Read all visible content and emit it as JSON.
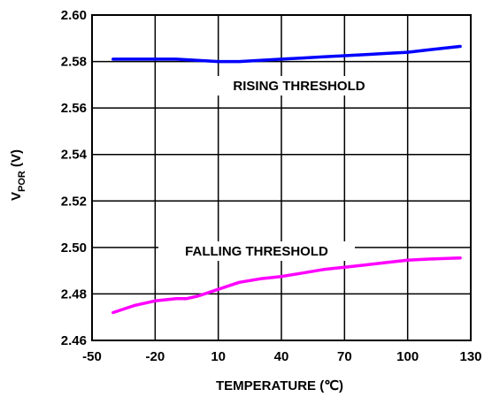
{
  "chart_data": {
    "type": "line",
    "title": "",
    "xlabel": "TEMPERATURE (℃)",
    "ylabel_main": "V",
    "ylabel_sub": "POR",
    "ylabel_suffix": " (V)",
    "x_tick_labels": [
      "-50",
      "-20",
      "10",
      "40",
      "70",
      "100",
      "130"
    ],
    "y_ticks": [
      2.46,
      2.48,
      2.5,
      2.52,
      2.54,
      2.56,
      2.58,
      2.6
    ],
    "y_tick_labels": [
      "2.46",
      "2.48",
      "2.50",
      "2.52",
      "2.54",
      "2.56",
      "2.58",
      "2.60"
    ],
    "ylim": [
      2.46,
      2.6
    ],
    "grid": true,
    "series": [
      {
        "name": "RISING THRESHOLD",
        "color": "#0000ff",
        "x": [
          -40,
          -20,
          -10,
          0,
          10,
          20,
          30,
          40,
          50,
          60,
          70,
          80,
          90,
          100,
          110,
          120,
          125
        ],
        "y": [
          2.581,
          2.581,
          2.581,
          2.5805,
          2.58,
          2.58,
          2.5805,
          2.581,
          2.5815,
          2.582,
          2.5825,
          2.583,
          2.5835,
          2.584,
          2.585,
          2.586,
          2.5865
        ]
      },
      {
        "name": "FALLING THRESHOLD",
        "color": "#ff00ff",
        "x": [
          -40,
          -30,
          -20,
          -10,
          -5,
          0,
          10,
          20,
          30,
          40,
          50,
          60,
          70,
          80,
          90,
          100,
          110,
          125
        ],
        "y": [
          2.472,
          2.475,
          2.477,
          2.478,
          2.478,
          2.479,
          2.482,
          2.485,
          2.4865,
          2.4875,
          2.489,
          2.4905,
          2.4915,
          2.4925,
          2.4935,
          2.4945,
          2.495,
          2.4955
        ]
      }
    ]
  }
}
